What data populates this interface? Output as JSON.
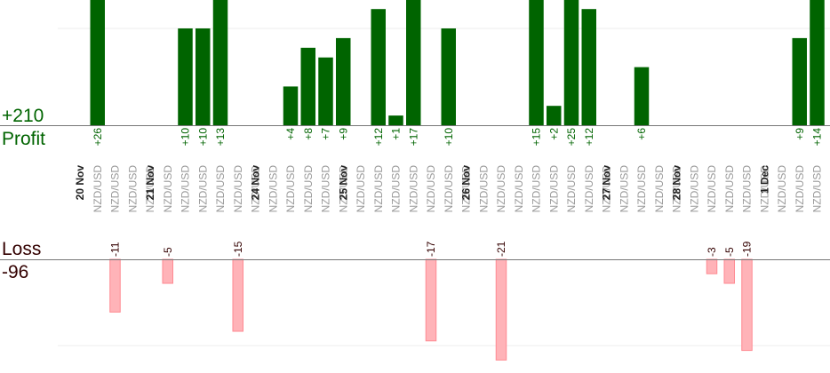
{
  "summary": {
    "profit_total": "+210",
    "profit_label": "Profit",
    "loss_label": "Loss",
    "loss_total": "-96"
  },
  "colors": {
    "profit_bar": "#006400",
    "profit_text": "#006400",
    "loss_bar": "#ffb3b8",
    "loss_bar_border": "#ff8a92",
    "loss_text": "#330000",
    "baseline": "#777777",
    "grid": "#eeeeee",
    "date_text": "#222222",
    "pair_text": "#999999"
  },
  "chart_data": {
    "type": "bar",
    "title": "",
    "columns": [
      {
        "pair": "NZD/USD",
        "profit": 26,
        "loss": null,
        "date": "20 Nov"
      },
      {
        "pair": "NZD/USD",
        "profit": null,
        "loss": -11,
        "date": null
      },
      {
        "pair": "NZD/USD",
        "profit": null,
        "loss": null,
        "date": null
      },
      {
        "pair": "NZD/USD",
        "profit": null,
        "loss": null,
        "date": null
      },
      {
        "pair": "NZD/USD",
        "profit": null,
        "loss": -5,
        "date": "21 Nov"
      },
      {
        "pair": "NZD/USD",
        "profit": 10,
        "loss": null,
        "date": null
      },
      {
        "pair": "NZD/USD",
        "profit": 10,
        "loss": null,
        "date": null
      },
      {
        "pair": "NZD/USD",
        "profit": 13,
        "loss": null,
        "date": null
      },
      {
        "pair": "NZD/USD",
        "profit": null,
        "loss": -15,
        "date": null
      },
      {
        "pair": "NZD/USD",
        "profit": null,
        "loss": null,
        "date": null
      },
      {
        "pair": "NZD/USD",
        "profit": null,
        "loss": null,
        "date": "24 Nov"
      },
      {
        "pair": "NZD/USD",
        "profit": 4,
        "loss": null,
        "date": null
      },
      {
        "pair": "NZD/USD",
        "profit": 8,
        "loss": null,
        "date": null
      },
      {
        "pair": "NZD/USD",
        "profit": 7,
        "loss": null,
        "date": null
      },
      {
        "pair": "NZD/USD",
        "profit": 9,
        "loss": null,
        "date": null
      },
      {
        "pair": "NZD/USD",
        "profit": null,
        "loss": null,
        "date": "25 Nov"
      },
      {
        "pair": "NZD/USD",
        "profit": 12,
        "loss": null,
        "date": null
      },
      {
        "pair": "NZD/USD",
        "profit": 1,
        "loss": null,
        "date": null
      },
      {
        "pair": "NZD/USD",
        "profit": 17,
        "loss": null,
        "date": null
      },
      {
        "pair": "NZD/USD",
        "profit": null,
        "loss": -17,
        "date": null
      },
      {
        "pair": "NZD/USD",
        "profit": 10,
        "loss": null,
        "date": null
      },
      {
        "pair": "NZD/USD",
        "profit": null,
        "loss": null,
        "date": null
      },
      {
        "pair": "NZD/USD",
        "profit": null,
        "loss": null,
        "date": "26 Nov"
      },
      {
        "pair": "NZD/USD",
        "profit": null,
        "loss": -21,
        "date": null
      },
      {
        "pair": "NZD/USD",
        "profit": null,
        "loss": null,
        "date": null
      },
      {
        "pair": "NZD/USD",
        "profit": 15,
        "loss": null,
        "date": null
      },
      {
        "pair": "NZD/USD",
        "profit": 2,
        "loss": null,
        "date": null
      },
      {
        "pair": "NZD/USD",
        "profit": 25,
        "loss": null,
        "date": null
      },
      {
        "pair": "NZD/USD",
        "profit": 12,
        "loss": null,
        "date": null
      },
      {
        "pair": "NZD/USD",
        "profit": null,
        "loss": null,
        "date": null
      },
      {
        "pair": "NZD/USD",
        "profit": null,
        "loss": null,
        "date": "27 Nov"
      },
      {
        "pair": "NZD/USD",
        "profit": 6,
        "loss": null,
        "date": null
      },
      {
        "pair": "NZD/USD",
        "profit": null,
        "loss": null,
        "date": null
      },
      {
        "pair": "NZD/USD",
        "profit": null,
        "loss": null,
        "date": null
      },
      {
        "pair": "NZD/USD",
        "profit": null,
        "loss": null,
        "date": "28 Nov"
      },
      {
        "pair": "NZD/USD",
        "profit": null,
        "loss": -3,
        "date": null
      },
      {
        "pair": "NZD/USD",
        "profit": null,
        "loss": -5,
        "date": null
      },
      {
        "pair": "NZD/USD",
        "profit": null,
        "loss": -19,
        "date": null
      },
      {
        "pair": "NZD/USD",
        "profit": null,
        "loss": null,
        "date": null
      },
      {
        "pair": "NZD/USD",
        "profit": null,
        "loss": null,
        "date": "1 Dec"
      },
      {
        "pair": "NZD/USD",
        "profit": 9,
        "loss": null,
        "date": null
      },
      {
        "pair": "NZD/USD",
        "profit": 14,
        "loss": null,
        "date": null
      },
      {
        "pair": "NZD/USD",
        "profit": null,
        "loss": null,
        "date": null
      }
    ],
    "profit_axis": {
      "min": 0,
      "max": 13,
      "gridline": 10
    },
    "loss_axis": {
      "min": 0,
      "max": -21,
      "gridline": -18
    }
  }
}
